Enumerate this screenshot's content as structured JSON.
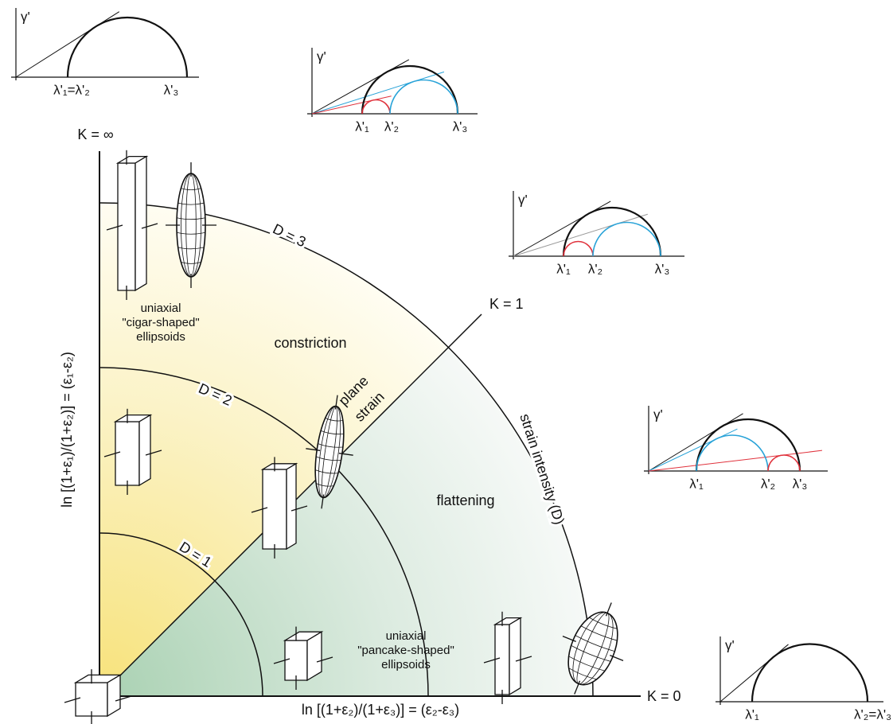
{
  "axes": {
    "y_label": "ln [(1+ε₁)/(1+ε₂)] = (ε₁-ε₂)",
    "x_label": "ln [(1+ε₂)/(1+ε₃)] = (ε₂-ε₃)",
    "k_infinity": "K = ∞",
    "k_one": "K = 1",
    "k_zero": "K = 0"
  },
  "curves": [
    "D = 1",
    "D = 2",
    "D = 3"
  ],
  "regions": {
    "constriction": "constriction",
    "flattening": "flattening",
    "plane_strain": [
      "plane",
      "strain"
    ],
    "strain_intensity": "strain intensity (D)",
    "cigar": [
      "uniaxial",
      "\"cigar-shaped\"",
      "ellipsoids"
    ],
    "pancake": [
      "uniaxial",
      "\"pancake-shaped\"",
      "ellipsoids"
    ]
  },
  "mohr": [
    {
      "y_label": "γ'",
      "labels": [
        "λ'₁=λ'₂",
        "λ'₃"
      ]
    },
    {
      "y_label": "γ'",
      "labels": [
        "λ'₁",
        "λ'₂",
        "λ'₃"
      ]
    },
    {
      "y_label": "γ'",
      "labels": [
        "λ'₁",
        "λ'₂",
        "λ'₃"
      ]
    },
    {
      "y_label": "γ'",
      "labels": [
        "λ'₁",
        "λ'₂",
        "λ'₃"
      ]
    },
    {
      "y_label": "γ'",
      "labels": [
        "λ'₁",
        "λ'₂=λ'₃"
      ]
    }
  ]
}
